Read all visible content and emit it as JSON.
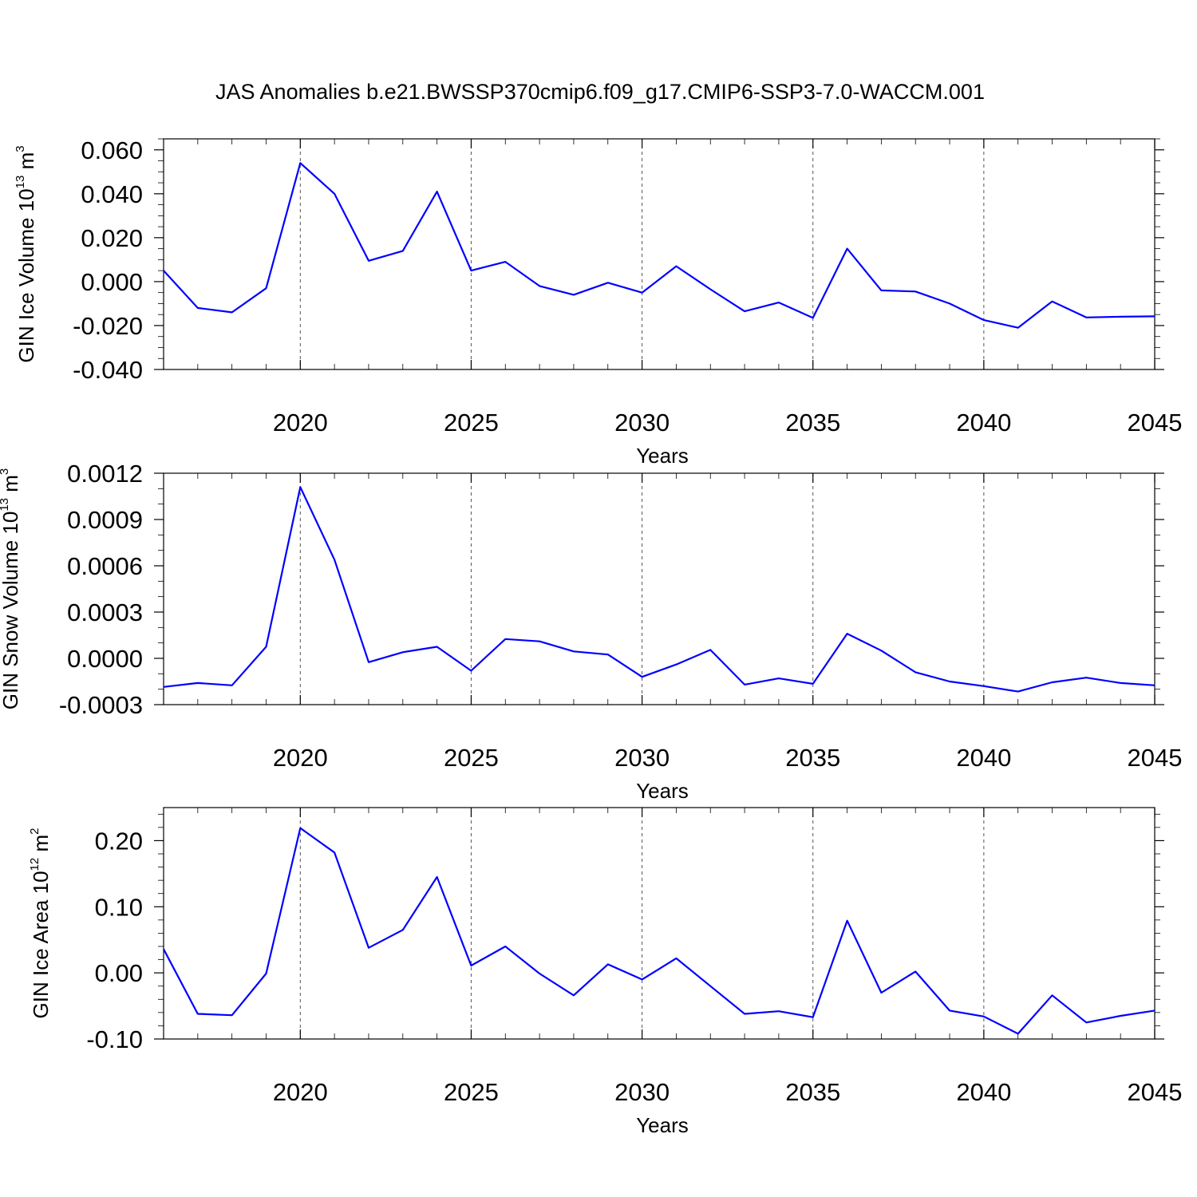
{
  "figure_title": "JAS Anomalies b.e21.BWSSP370cmip6.f09_g17.CMIP6-SSP3-7.0-WACCM.001",
  "colors": {
    "line": "#0000ff",
    "axes": "#000000",
    "grid": "#555555"
  },
  "chart_data": [
    {
      "type": "line",
      "ylabel_main": "GIN Ice Volume 10",
      "ylabel_exp": "13",
      "ylabel_unit": " m",
      "ylabel_unit_exp": "3",
      "xlabel": "Years",
      "xlim": [
        2016,
        2045
      ],
      "ylim": [
        -0.04,
        0.065
      ],
      "x_ticks": [
        2020,
        2025,
        2030,
        2035,
        2040,
        2045
      ],
      "x_tick_labels": [
        "2020",
        "2025",
        "2030",
        "2035",
        "2040",
        "2045"
      ],
      "y_ticks": [
        -0.04,
        -0.02,
        0.0,
        0.02,
        0.04,
        0.06
      ],
      "y_tick_labels": [
        "-0.040",
        "-0.020",
        "0.000",
        "0.020",
        "0.040",
        "0.060"
      ],
      "y_minor_step": 0.005,
      "grid": "dashed vertical lines at x ticks",
      "x": [
        2016,
        2017,
        2018,
        2019,
        2020,
        2021,
        2022,
        2023,
        2024,
        2025,
        2026,
        2027,
        2028,
        2029,
        2030,
        2031,
        2032,
        2033,
        2034,
        2035,
        2036,
        2037,
        2038,
        2039,
        2040,
        2041,
        2042,
        2043,
        2044,
        2045
      ],
      "values": [
        0.005,
        -0.012,
        -0.014,
        -0.003,
        0.054,
        0.04,
        0.0095,
        0.014,
        0.041,
        0.005,
        0.009,
        -0.002,
        -0.006,
        -0.0005,
        -0.005,
        0.007,
        -0.0035,
        -0.0135,
        -0.0095,
        -0.0165,
        0.015,
        -0.004,
        -0.0045,
        -0.01,
        -0.0175,
        -0.021,
        -0.009,
        -0.0163,
        -0.016,
        -0.0158
      ]
    },
    {
      "type": "line",
      "ylabel_main": "GIN Snow Volume 10",
      "ylabel_exp": "13",
      "ylabel_unit": " m",
      "ylabel_unit_exp": "3",
      "xlabel": "Years",
      "xlim": [
        2016,
        2045
      ],
      "ylim": [
        -0.0003,
        0.0012
      ],
      "x_ticks": [
        2020,
        2025,
        2030,
        2035,
        2040,
        2045
      ],
      "x_tick_labels": [
        "2020",
        "2025",
        "2030",
        "2035",
        "2040",
        "2045"
      ],
      "y_ticks": [
        -0.0003,
        0.0,
        0.0003,
        0.0006,
        0.0009,
        0.0012
      ],
      "y_tick_labels": [
        "-0.0003",
        "0.0000",
        "0.0003",
        "0.0006",
        "0.0009",
        "0.0012"
      ],
      "y_minor_step": 0.0001,
      "grid": "dashed vertical lines at x ticks",
      "x": [
        2016,
        2017,
        2018,
        2019,
        2020,
        2021,
        2022,
        2023,
        2024,
        2025,
        2026,
        2027,
        2028,
        2029,
        2030,
        2031,
        2032,
        2033,
        2034,
        2035,
        2036,
        2037,
        2038,
        2039,
        2040,
        2041,
        2042,
        2043,
        2044,
        2045
      ],
      "values": [
        -0.000185,
        -0.00016,
        -0.000175,
        7.5e-05,
        0.00111,
        0.00064,
        -2.5e-05,
        4e-05,
        7.5e-05,
        -8e-05,
        0.000125,
        0.00011,
        4.5e-05,
        2.5e-05,
        -0.00012,
        -4e-05,
        5.5e-05,
        -0.00017,
        -0.00013,
        -0.000165,
        0.00016,
        5e-05,
        -9e-05,
        -0.00015,
        -0.00018,
        -0.000215,
        -0.000155,
        -0.000125,
        -0.00016,
        -0.000175
      ]
    },
    {
      "type": "line",
      "ylabel_main": "GIN Ice Area 10",
      "ylabel_exp": "12",
      "ylabel_unit": " m",
      "ylabel_unit_exp": "2",
      "xlabel": "Years",
      "xlim": [
        2016,
        2045
      ],
      "ylim": [
        -0.1,
        0.25
      ],
      "x_ticks": [
        2020,
        2025,
        2030,
        2035,
        2040,
        2045
      ],
      "x_tick_labels": [
        "2020",
        "2025",
        "2030",
        "2035",
        "2040",
        "2045"
      ],
      "y_ticks": [
        -0.1,
        0.0,
        0.1,
        0.2
      ],
      "y_tick_labels": [
        "-0.10",
        "0.00",
        "0.10",
        "0.20"
      ],
      "y_minor_step": 0.02,
      "grid": "dashed vertical lines at x ticks",
      "x": [
        2016,
        2017,
        2018,
        2019,
        2020,
        2021,
        2022,
        2023,
        2024,
        2025,
        2026,
        2027,
        2028,
        2029,
        2030,
        2031,
        2032,
        2033,
        2034,
        2035,
        2036,
        2037,
        2038,
        2039,
        2040,
        2041,
        2042,
        2043,
        2044,
        2045
      ],
      "values": [
        0.036,
        -0.062,
        -0.064,
        -0.001,
        0.219,
        0.182,
        0.038,
        0.065,
        0.145,
        0.011,
        0.04,
        -0.001,
        -0.034,
        0.013,
        -0.01,
        0.022,
        -0.02,
        -0.062,
        -0.058,
        -0.067,
        0.079,
        -0.03,
        0.002,
        -0.057,
        -0.066,
        -0.092,
        -0.034,
        -0.075,
        -0.065,
        -0.057
      ]
    }
  ]
}
